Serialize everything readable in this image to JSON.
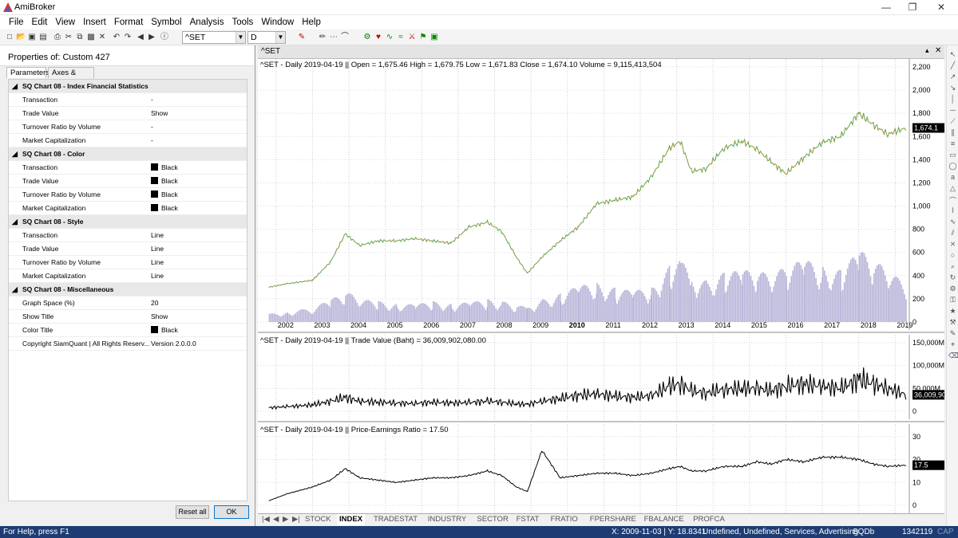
{
  "app": {
    "title": "AmiBroker"
  },
  "menu": [
    "File",
    "Edit",
    "View",
    "Insert",
    "Format",
    "Symbol",
    "Analysis",
    "Tools",
    "Window",
    "Help"
  ],
  "toolbar": {
    "symbol": "^SET",
    "interval": "D"
  },
  "panel": {
    "header": "Properties of: Custom 427",
    "tabs": [
      "Parameters",
      "Axes & Grid"
    ],
    "rows": [
      {
        "type": "cat",
        "label": "SQ Chart 08 - Index Financial Statistics"
      },
      {
        "label": "Transaction",
        "value": "-"
      },
      {
        "label": "Trade Value",
        "value": "Show"
      },
      {
        "label": "Turnover Ratio by Volume",
        "value": "-"
      },
      {
        "label": "Market Capitalization",
        "value": "-"
      },
      {
        "type": "cat",
        "label": "SQ Chart 08 - Color"
      },
      {
        "label": "Transaction",
        "value": "Black",
        "swatch": "#000000"
      },
      {
        "label": "Trade Value",
        "value": "Black",
        "swatch": "#000000"
      },
      {
        "label": "Turnover Ratio by Volume",
        "value": "Black",
        "swatch": "#000000"
      },
      {
        "label": "Market Capitalization",
        "value": "Black",
        "swatch": "#000000"
      },
      {
        "type": "cat",
        "label": "SQ Chart 08 - Style"
      },
      {
        "label": "Transaction",
        "value": "Line"
      },
      {
        "label": "Trade Value",
        "value": "Line"
      },
      {
        "label": "Turnover Ratio by Volume",
        "value": "Line"
      },
      {
        "label": "Market Capitalization",
        "value": "Line"
      },
      {
        "type": "cat",
        "label": "SQ Chart 08 - Miscellaneous"
      },
      {
        "label": "Graph Space (%)",
        "value": "20"
      },
      {
        "label": "Show Title",
        "value": "Show"
      },
      {
        "label": "Color Title",
        "value": "Black",
        "swatch": "#000000"
      },
      {
        "label": "Copyright SiamQuant | All Rights Reserv...",
        "value": "Version 2.0.0.0"
      }
    ],
    "reset_label": "Reset all",
    "ok_label": "OK"
  },
  "chart": {
    "window_title": "^SET",
    "pane1_title": "^SET - Daily   2019-04-19    ||    Open = 1,675.46   High = 1,679.75   Low = 1,671.83   Close = 1,674.10   Volume = 9,115,413,504",
    "pane2_title": "^SET - Daily   2019-04-19    ||    Trade Value (Baht) = 36,009,902,080.00",
    "pane3_title": "^SET - Daily   2019-04-19    ||    Price-Earnings Ratio = 17.50",
    "price_axis": [
      "2,200",
      "2,000",
      "1,800",
      "1,600",
      "1,400",
      "1,200",
      "1,000",
      "800",
      "600",
      "400",
      "200",
      "0"
    ],
    "price_last": "1,674.1",
    "tv_axis": [
      "150,000M",
      "100,000M",
      "50,000M",
      "0"
    ],
    "tv_last": "36,009,90",
    "pe_axis": [
      "30",
      "20",
      "10",
      "0"
    ],
    "pe_last": "17.5",
    "years": [
      "2002",
      "2003",
      "2004",
      "2005",
      "2006",
      "2007",
      "2008",
      "2009",
      "2010",
      "2011",
      "2012",
      "2013",
      "2014",
      "2015",
      "2016",
      "2017",
      "2018",
      "2019"
    ]
  },
  "chart_data": {
    "type": "line",
    "x": [
      2001.8,
      2002.3,
      2003.0,
      2003.5,
      2003.9,
      2004.3,
      2004.8,
      2005.3,
      2005.8,
      2006.3,
      2006.8,
      2007.3,
      2007.8,
      2008.2,
      2008.6,
      2008.9,
      2009.3,
      2009.8,
      2010.3,
      2010.8,
      2011.3,
      2011.8,
      2012.3,
      2012.8,
      2013.1,
      2013.4,
      2013.8,
      2014.3,
      2014.8,
      2015.2,
      2015.6,
      2016.0,
      2016.5,
      2017.0,
      2017.5,
      2018.0,
      2018.4,
      2018.8,
      2019.3
    ],
    "series": [
      {
        "name": "^SET",
        "values": [
          300,
          330,
          360,
          520,
          760,
          660,
          700,
          700,
          720,
          700,
          680,
          820,
          860,
          780,
          560,
          420,
          560,
          700,
          820,
          1020,
          1050,
          1080,
          1250,
          1500,
          1560,
          1300,
          1320,
          1500,
          1560,
          1490,
          1380,
          1280,
          1420,
          1550,
          1600,
          1800,
          1700,
          1620,
          1674
        ]
      },
      {
        "name": "Trade Value (Baht)",
        "values": [
          8000,
          10000,
          14000,
          22000,
          30000,
          22000,
          20000,
          18000,
          17000,
          20000,
          18000,
          19000,
          22000,
          20000,
          16000,
          15000,
          22000,
          28000,
          35000,
          38000,
          33000,
          30000,
          34000,
          55000,
          60000,
          45000,
          40000,
          48000,
          50000,
          50000,
          45000,
          55000,
          60000,
          55000,
          50000,
          70000,
          60000,
          50000,
          36000
        ]
      },
      {
        "name": "Price-Earnings Ratio",
        "values": [
          2,
          5,
          8,
          11,
          16,
          12,
          11,
          10,
          11,
          12,
          12,
          13,
          15,
          13,
          8,
          6,
          24,
          12,
          13,
          14,
          14,
          13,
          14,
          16,
          17,
          15,
          15,
          17,
          17,
          19,
          18,
          20,
          19,
          21,
          21,
          20,
          18,
          17,
          17.5
        ]
      }
    ],
    "ylim": [
      0,
      2200
    ]
  },
  "sheets": [
    "STOCK",
    "INDEX",
    "TRADESTAT",
    "INDUSTRY",
    "SECTOR",
    "FSTAT",
    "FRATIO",
    "FPERSHARE",
    "FBALANCE",
    "PROFCA"
  ],
  "status": {
    "help": "For Help, press F1",
    "coords": "X: 2009-11-03 | Y: 18.8341",
    "info": "Undefined, Undefined, Services, Advertising",
    "db": "SQDb",
    "mem": "1342119",
    "cap": "CAP"
  }
}
